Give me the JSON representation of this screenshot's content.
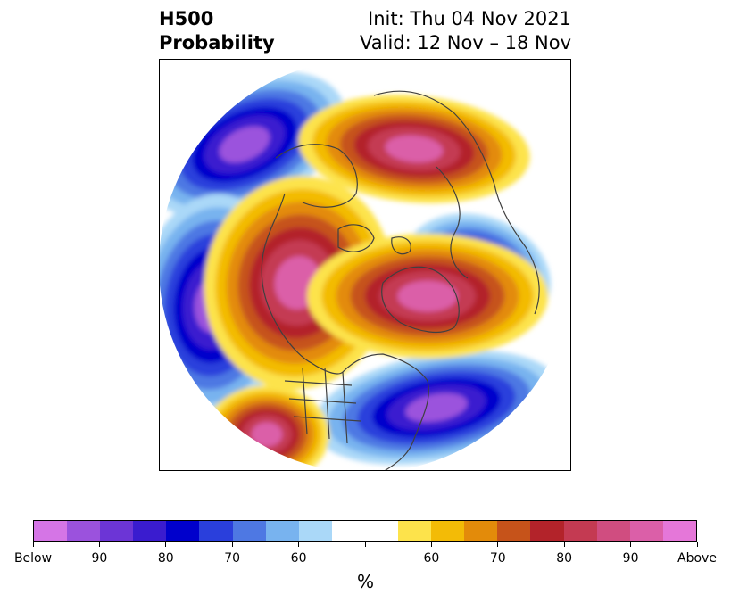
{
  "title": {
    "left_line1": "H500",
    "left_line2": "Probability",
    "right_line1": "Init: Thu 04 Nov 2021",
    "right_line2": "Valid: 12 Nov – 18 Nov"
  },
  "colorbar": {
    "colors": [
      "#d575e6",
      "#9b52dd",
      "#6c35d6",
      "#3a1ccf",
      "#0000cc",
      "#2a3fdc",
      "#4e78e3",
      "#78b3ef",
      "#aad8f8",
      "#ffffff",
      "#ffffff",
      "#fde34b",
      "#f3bb06",
      "#e38b0a",
      "#c6531a",
      "#b3232a",
      "#c43a52",
      "#d04d80",
      "#db5fa8",
      "#e577d9"
    ],
    "tick_labels": [
      "Below",
      "90",
      "80",
      "70",
      "60",
      "",
      "60",
      "70",
      "80",
      "90",
      "Above"
    ],
    "unit_label": "%"
  },
  "map": {
    "below_colors": [
      "#aad8f8",
      "#78b3ef",
      "#4e78e3",
      "#2a3fdc",
      "#0000cc",
      "#3a1ccf",
      "#9b52dd"
    ],
    "above_colors": [
      "#fde34b",
      "#f3bb06",
      "#e38b0a",
      "#c6531a",
      "#b3232a",
      "#c43a52",
      "#db5fa8"
    ],
    "coastline_color": "#404040"
  }
}
